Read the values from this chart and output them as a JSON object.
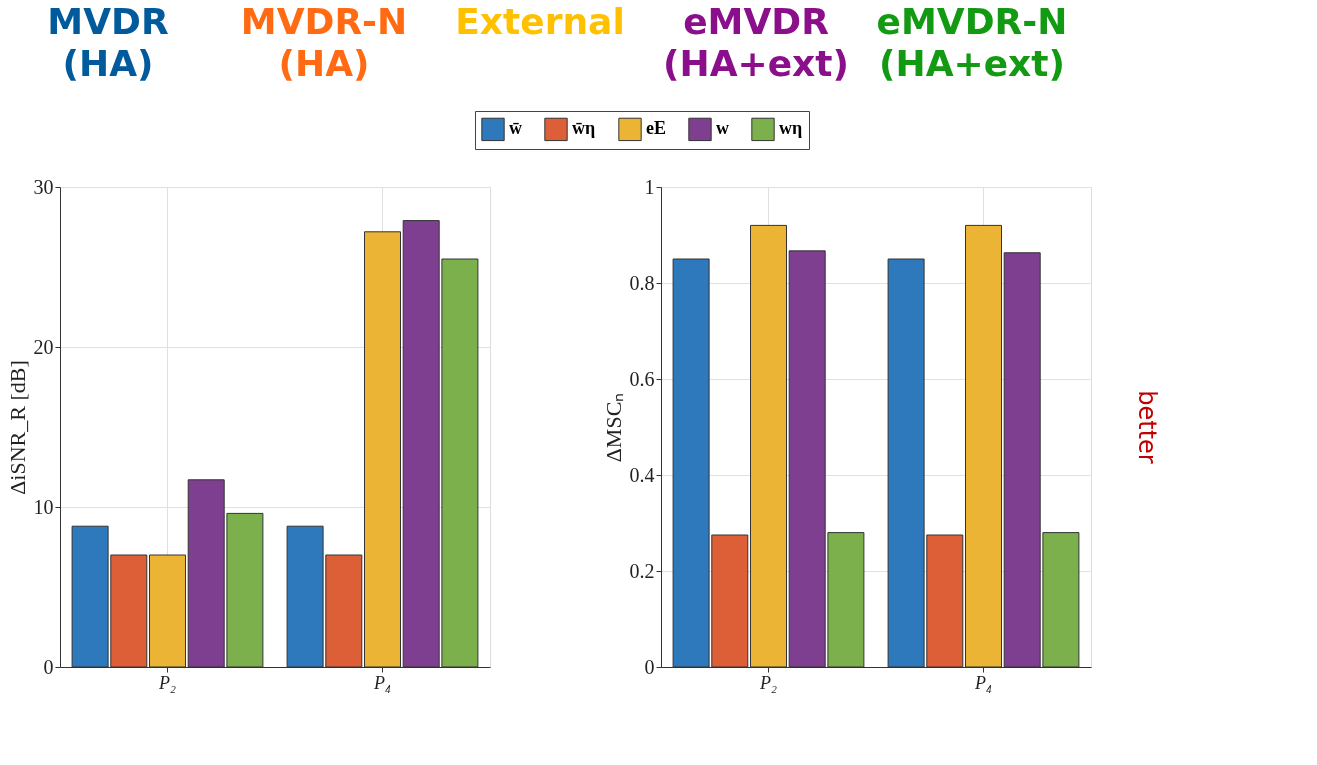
{
  "chart_data": [
    {
      "type": "bar",
      "categories": [
        "P₂",
        "P₄"
      ],
      "ylabel": "ΔiSNR_R [dB]",
      "ylim": [
        0,
        30
      ],
      "yticks": [
        0,
        10,
        20,
        30
      ],
      "grid": true,
      "legend": "top",
      "series": [
        {
          "name": "w̄",
          "color": "#2e78bc",
          "values": [
            8.8,
            8.8
          ]
        },
        {
          "name": "w̄η",
          "color": "#dd5f38",
          "values": [
            7.0,
            7.0
          ]
        },
        {
          "name": "eE",
          "color": "#ecb434",
          "values": [
            7.0,
            27.2
          ]
        },
        {
          "name": "w",
          "color": "#7f3f90",
          "values": [
            11.7,
            27.9
          ]
        },
        {
          "name": "wη",
          "color": "#7cb04c",
          "values": [
            9.6,
            25.5
          ]
        }
      ],
      "annotations": [
        "MVDR\n(HA)",
        "MVDR-N\n(HA)",
        "External",
        "eMVDR\n(HA+ext)",
        "eMVDR-N\n(HA+ext)"
      ]
    },
    {
      "type": "bar",
      "categories": [
        "P₂",
        "P₄"
      ],
      "ylabel": "ΔMSCₙ",
      "ylim": [
        0,
        1
      ],
      "yticks": [
        0,
        0.2,
        0.4,
        0.6,
        0.8,
        1
      ],
      "grid": true,
      "legend": "top",
      "series": [
        {
          "name": "w̄",
          "color": "#2e78bc",
          "values": [
            0.85,
            0.85
          ]
        },
        {
          "name": "w̄η",
          "color": "#dd5f38",
          "values": [
            0.275,
            0.275
          ]
        },
        {
          "name": "eE",
          "color": "#ecb434",
          "values": [
            0.92,
            0.92
          ]
        },
        {
          "name": "w",
          "color": "#7f3f90",
          "values": [
            0.867,
            0.863
          ]
        },
        {
          "name": "wη",
          "color": "#7cb04c",
          "values": [
            0.28,
            0.28
          ]
        }
      ],
      "annotations": [
        "better"
      ]
    }
  ]
}
